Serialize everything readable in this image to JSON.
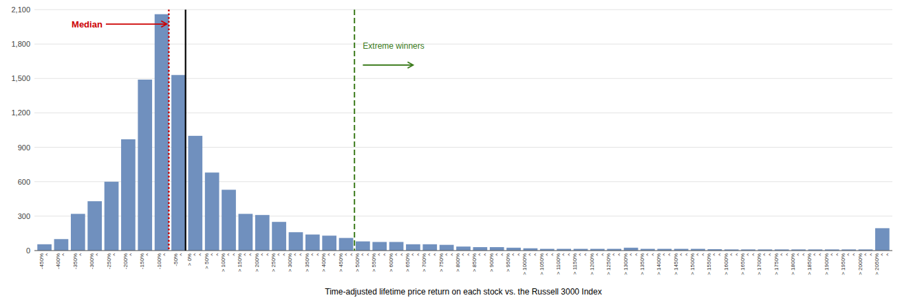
{
  "chart_data": {
    "type": "bar",
    "categories": [
      "-450%\n^",
      "-400%\n^",
      "-350%\n^",
      "-300%\n^",
      "-250%\n^",
      "-200%\n^",
      "-150%\n^",
      "-100%\n^",
      "-50%\n^",
      "> 0%\n^\n^",
      "> 50%\n^\n^",
      "> 100%\n^\n^",
      "> 150%\n^\n^",
      "> 200%\n^\n^",
      "> 250%\n^\n^",
      "> 300%\n^\n^",
      "> 350%\n^\n^",
      "> 400%\n^\n^",
      "> 450%\n^\n^",
      "> 500%\n^\n^",
      "> 550%\n^\n^",
      "> 600%\n^\n^",
      "> 650%\n^\n^",
      "> 700%\n^\n^",
      "> 750%\n^\n^",
      "> 800%\n^\n^",
      "> 850%\n^\n^",
      "> 900%\n^\n^",
      "> 950%\n^\n^",
      "> 1000%\n^\n^",
      "> 1050%\n^\n^",
      "> 1100%\n^\n^",
      "> 1150%\n^\n^",
      "> 1200%\n^\n^",
      "> 1250%\n^\n^",
      "> 1300%\n^\n^",
      "> 1350%\n^\n^",
      "> 1400%\n^\n^",
      "> 1450%\n^\n^",
      "> 1500%\n^\n^",
      "> 1550%\n^\n^",
      "> 1600%\n^\n^",
      "> 1650%\n^\n^",
      "> 1700%\n^\n^",
      "> 1750%\n^\n^",
      "> 1800%\n^\n^",
      "> 1850%\n^\n^",
      "> 1900%\n^\n^",
      "> 1950%\n^\n^",
      "> 2000%\n^\n^",
      "> 2050%\n^\n^"
    ],
    "values": [
      55,
      100,
      320,
      430,
      600,
      970,
      1490,
      2060,
      1530,
      1000,
      680,
      530,
      320,
      310,
      250,
      160,
      140,
      130,
      110,
      80,
      75,
      75,
      55,
      55,
      50,
      35,
      30,
      30,
      25,
      20,
      15,
      15,
      15,
      15,
      15,
      25,
      15,
      15,
      15,
      15,
      12,
      10,
      10,
      10,
      10,
      10,
      10,
      10,
      10,
      10,
      195
    ],
    "color": "#7090be",
    "xlabel": "Time-adjusted lifetime price return on each stock vs. the Russell 3000 Index",
    "ylim": [
      0,
      2100
    ],
    "yticks": [
      0,
      300,
      600,
      900,
      {
        "value": 1200,
        "label": "1,200"
      },
      {
        "value": 1500,
        "label": "1,500"
      },
      {
        "value": 1800,
        "label": "1,800"
      },
      {
        "value": 2100,
        "label": "2,100"
      }
    ],
    "grid": true,
    "annotations": [
      {
        "text": "Median",
        "x": 7.42,
        "color": "#cc0000",
        "line_style": "dotted"
      },
      {
        "x": 8.42,
        "color": "#000000",
        "line_style": "solid"
      },
      {
        "text": "Extreme winners",
        "x": 18.5,
        "color": "#3a7a1a",
        "line_style": "dashed"
      }
    ]
  }
}
